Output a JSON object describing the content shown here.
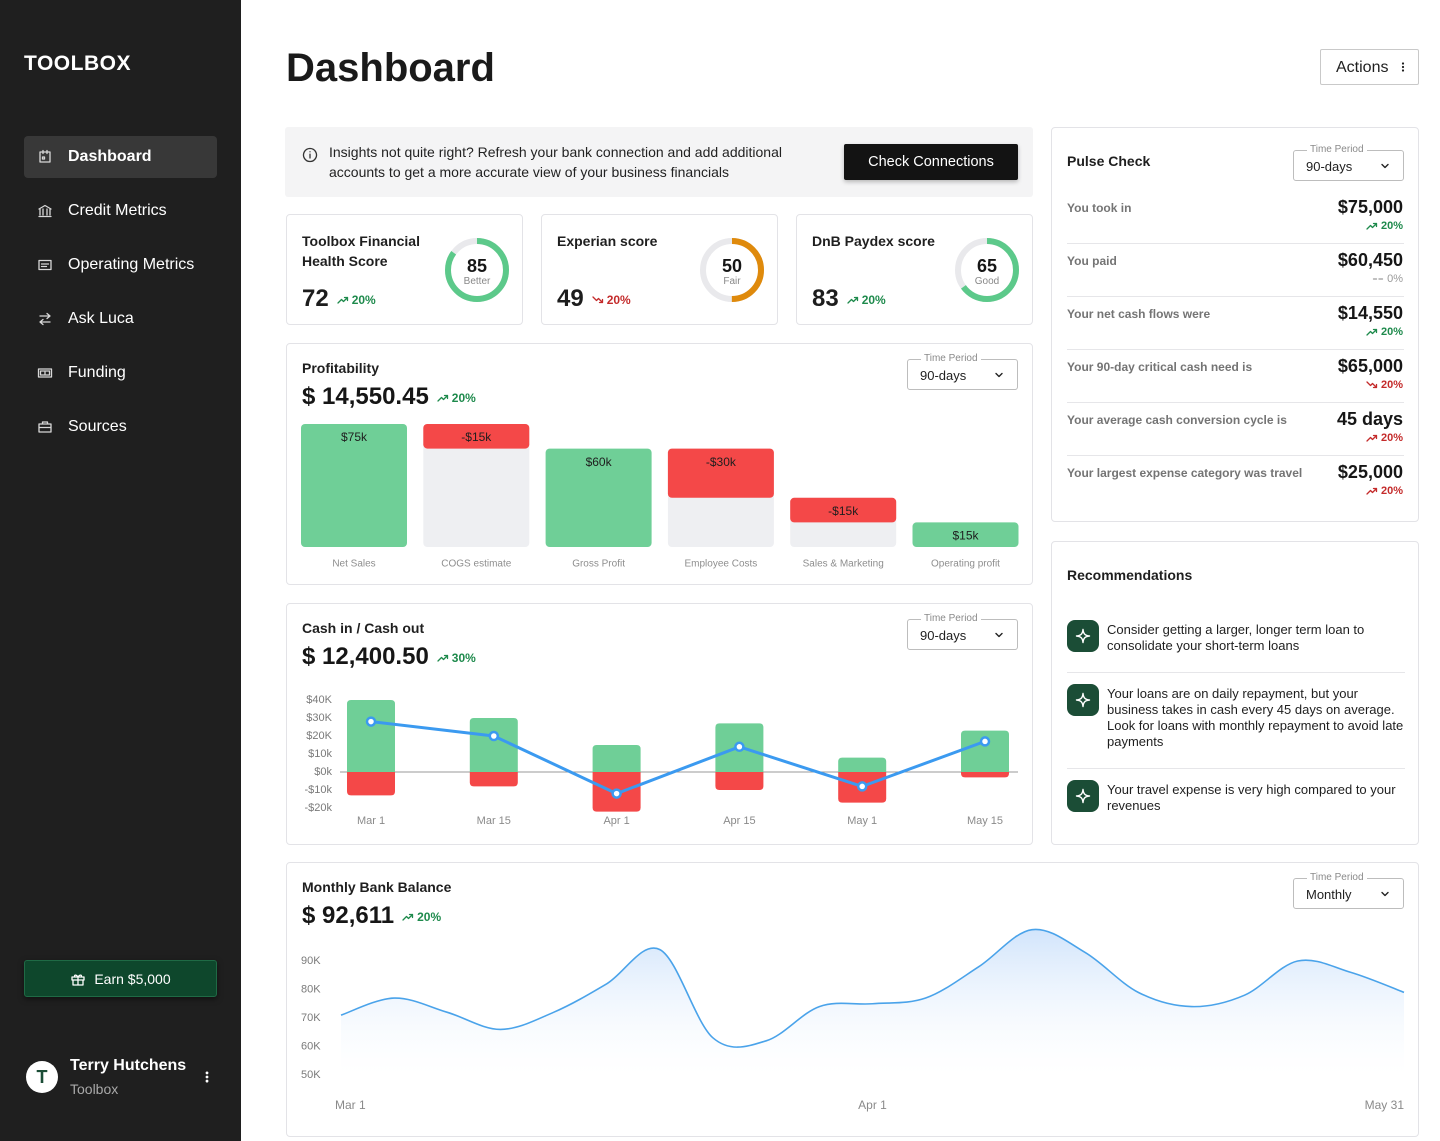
{
  "sidebar": {
    "brand": "TOOLBOX",
    "nav": [
      {
        "label": "Dashboard",
        "active": true
      },
      {
        "label": "Credit Metrics",
        "active": false
      },
      {
        "label": "Operating Metrics",
        "active": false
      },
      {
        "label": "Ask Luca",
        "active": false
      },
      {
        "label": "Funding",
        "active": false
      },
      {
        "label": "Sources",
        "active": false
      }
    ],
    "promo": "Earn $5,000",
    "user": {
      "initial": "T",
      "name": "Terry Hutchens",
      "org": "Toolbox"
    }
  },
  "header": {
    "title": "Dashboard",
    "actions": "Actions"
  },
  "banner": {
    "text": "Insights not quite right? Refresh your bank connection and add additional accounts to get a more accurate view of your business financials",
    "button": "Check Connections"
  },
  "scores": [
    {
      "title": "Toolbox Financial Health Score",
      "value": 72,
      "change": "20%",
      "trend": "up",
      "color": "#1e8a4c",
      "gauge": 85,
      "gauge_label": "Better",
      "gauge_lim": [
        0,
        100
      ],
      "gauge_color": "#5cc98a"
    },
    {
      "title": "Experian score",
      "value": 49,
      "change": "20%",
      "trend": "down",
      "color": "#c42b2b",
      "gauge": 50,
      "gauge_label": "Fair",
      "gauge_lim": [
        0,
        100
      ],
      "gauge_color": "#df8a0c"
    },
    {
      "title": "DnB Paydex score",
      "value": 83,
      "change": "20%",
      "trend": "up",
      "color": "#1e8a4c",
      "gauge": 65,
      "gauge_label": "Good",
      "gauge_lim": [
        0,
        100
      ],
      "gauge_color": "#5cc98a"
    }
  ],
  "profitability": {
    "title": "Profitability",
    "amount": "$ 14,550.45",
    "change": "20%",
    "trend": "up",
    "color": "#1e8a4c",
    "period_label": "Time Period",
    "period": "90-days",
    "chart": {
      "type": "waterfall",
      "categories": [
        "Net Sales",
        "COGS estimate",
        "Gross Profit",
        "Employee Costs",
        "Sales & Marketing",
        "Operating profit"
      ],
      "values": [
        75,
        -15,
        60,
        -30,
        -15,
        15
      ],
      "value_labels": [
        "$75k",
        "-$15k",
        "$60k",
        "-$30k",
        "-$15k",
        "$15k"
      ],
      "measure": [
        "absolute",
        "relative",
        "absolute",
        "relative",
        "relative",
        "absolute"
      ],
      "colors": {
        "positive": "#6fcf97",
        "negative": "#f44848",
        "base": "#eeeff2"
      }
    }
  },
  "cashflow": {
    "title": "Cash in / Cash out",
    "amount": "$ 12,400.50",
    "change": "30%",
    "trend": "up",
    "color": "#1e8a4c",
    "period_label": "Time Period",
    "period": "90-days",
    "chart": {
      "type": "bar_line",
      "categories": [
        "Mar 1",
        "Mar 15",
        "Apr 1",
        "Apr 15",
        "May 1",
        "May 15"
      ],
      "series": [
        {
          "type": "bar",
          "color": "#6fcf97",
          "values": [
            40000,
            30000,
            15000,
            27000,
            8000,
            23000
          ]
        },
        {
          "type": "bar",
          "color": "#f44848",
          "values": [
            -13000,
            -8000,
            -22000,
            -10000,
            -17000,
            -3000
          ]
        },
        {
          "type": "line",
          "color": "#3b9af0",
          "values": [
            28000,
            20000,
            -12000,
            14000,
            -8000,
            17000
          ]
        }
      ],
      "ylim": [
        -20000,
        40000
      ],
      "yticks": [
        {
          "value": 40000,
          "label": "$40K"
        },
        {
          "value": 30000,
          "label": "$30K"
        },
        {
          "value": 20000,
          "label": "$20K"
        },
        {
          "value": 10000,
          "label": "$10k"
        },
        {
          "value": 0,
          "label": "$0k"
        },
        {
          "value": -10000,
          "label": "-$10k"
        },
        {
          "value": -20000,
          "label": "-$20k"
        }
      ],
      "zero_line": true
    }
  },
  "pulse": {
    "title": "Pulse Check",
    "period_label": "Time Period",
    "period": "90-days",
    "rows": [
      {
        "label": "You took in",
        "value": "$75,000",
        "change": "20%",
        "trend": "up",
        "color": "#1e8a4c"
      },
      {
        "label": "You paid",
        "value": "$60,450",
        "change": "0%",
        "trend": "flat",
        "color": "#9a9a9a"
      },
      {
        "label": "Your net cash flows were",
        "value": "$14,550",
        "change": "20%",
        "trend": "up",
        "color": "#1e8a4c"
      },
      {
        "label": "Your 90-day critical cash need is",
        "value": "$65,000",
        "change": "20%",
        "trend": "down",
        "color": "#c42b2b"
      },
      {
        "label": "Your average cash conversion cycle is",
        "value": "45 days",
        "change": "20%",
        "trend": "up",
        "color": "#c42b2b"
      },
      {
        "label": "Your largest expense category was travel",
        "value": "$25,000",
        "change": "20%",
        "trend": "up",
        "color": "#c42b2b"
      }
    ]
  },
  "recommendations": {
    "title": "Recommendations",
    "items": [
      "Consider getting a larger, longer term loan to consolidate your short-term loans",
      "Your loans are on daily repayment, but your business takes in cash every 45 days on average. Look for loans with monthly repayment to avoid late payments",
      "Your travel expense is very high compared to your revenues"
    ]
  },
  "bank": {
    "title": "Monthly Bank Balance",
    "amount": "$ 92,611",
    "change": "20%",
    "trend": "up",
    "color": "#1e8a4c",
    "period_label": "Time Period",
    "period": "Monthly",
    "chart": {
      "type": "area",
      "categories": [
        "Mar 1",
        null,
        null,
        null,
        null,
        null,
        null,
        null,
        null,
        null,
        "Apr 1",
        null,
        null,
        null,
        null,
        null,
        null,
        null,
        null,
        null,
        "May 31"
      ],
      "values": [
        71000,
        77000,
        72000,
        66000,
        72000,
        82000,
        94000,
        63000,
        62000,
        74000,
        75000,
        77000,
        88000,
        101000,
        93000,
        79000,
        74000,
        78000,
        90000,
        86000,
        79000
      ],
      "color": "#4aa3ea",
      "ylim": [
        50000,
        90000
      ],
      "yticks": [
        {
          "value": 90000,
          "label": "90K"
        },
        {
          "value": 80000,
          "label": "80K"
        },
        {
          "value": 70000,
          "label": "70K"
        },
        {
          "value": 60000,
          "label": "60K"
        },
        {
          "value": 50000,
          "label": "50K"
        }
      ]
    }
  }
}
